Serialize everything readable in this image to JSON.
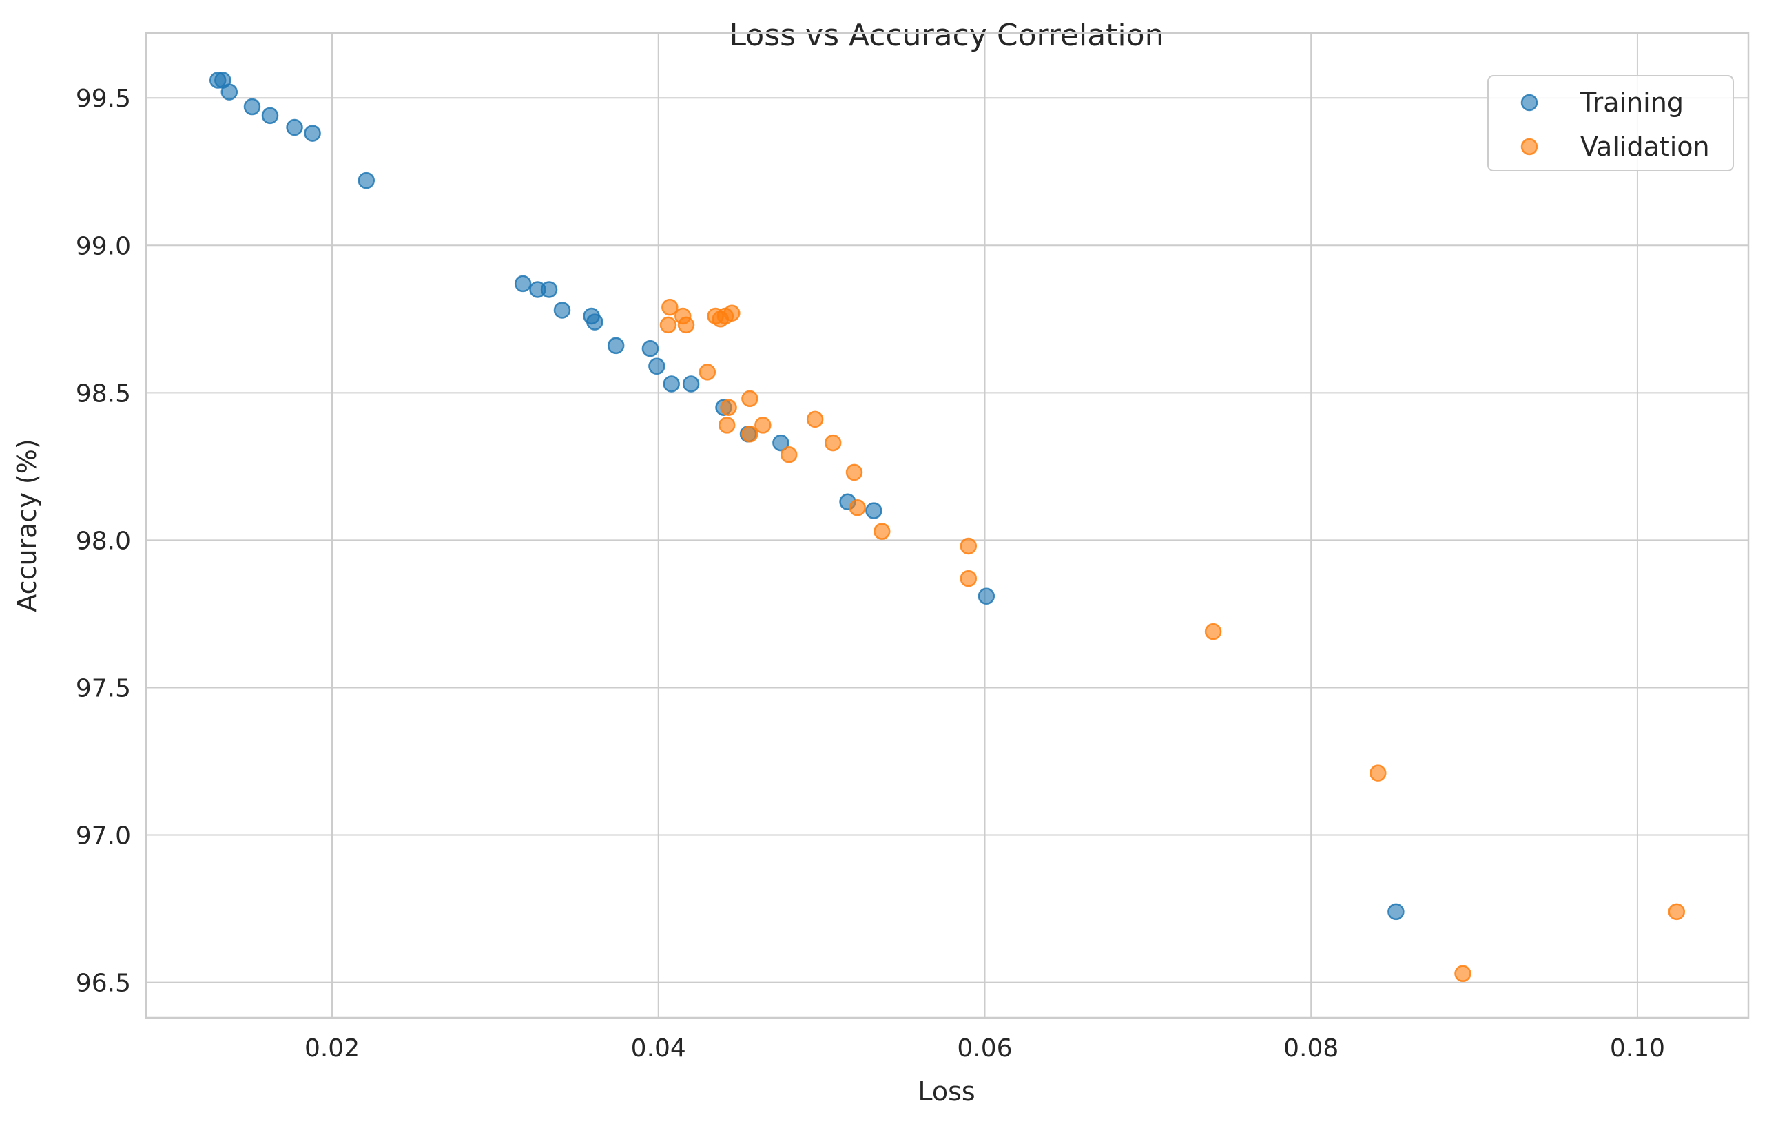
{
  "chart_data": {
    "type": "scatter",
    "title": "Loss vs Accuracy Correlation",
    "xlabel": "Loss",
    "ylabel": "Accuracy (%)",
    "xlim": [
      0.0086,
      0.1068
    ],
    "ylim": [
      96.38,
      99.72
    ],
    "xticks": [
      0.02,
      0.04,
      0.06,
      0.08,
      0.1
    ],
    "xtick_labels": [
      "0.02",
      "0.04",
      "0.06",
      "0.08",
      "0.10"
    ],
    "yticks": [
      96.5,
      97.0,
      97.5,
      98.0,
      98.5,
      99.0,
      99.5
    ],
    "ytick_labels": [
      "96.5",
      "97.0",
      "97.5",
      "98.0",
      "98.5",
      "99.0",
      "99.5"
    ],
    "grid": true,
    "legend_position": "top-right",
    "series": [
      {
        "name": "Training",
        "color": "#1f77b4",
        "points": [
          [
            0.013,
            99.56
          ],
          [
            0.0133,
            99.56
          ],
          [
            0.0137,
            99.52
          ],
          [
            0.0151,
            99.47
          ],
          [
            0.0162,
            99.44
          ],
          [
            0.0177,
            99.4
          ],
          [
            0.0188,
            99.38
          ],
          [
            0.0221,
            99.22
          ],
          [
            0.0317,
            98.87
          ],
          [
            0.0326,
            98.85
          ],
          [
            0.0333,
            98.85
          ],
          [
            0.0341,
            98.78
          ],
          [
            0.0359,
            98.76
          ],
          [
            0.0361,
            98.74
          ],
          [
            0.0374,
            98.66
          ],
          [
            0.0395,
            98.65
          ],
          [
            0.0399,
            98.59
          ],
          [
            0.0408,
            98.53
          ],
          [
            0.042,
            98.53
          ],
          [
            0.044,
            98.45
          ],
          [
            0.0455,
            98.36
          ],
          [
            0.0475,
            98.33
          ],
          [
            0.0516,
            98.13
          ],
          [
            0.0532,
            98.1
          ],
          [
            0.0601,
            97.81
          ],
          [
            0.0852,
            96.74
          ]
        ]
      },
      {
        "name": "Validation",
        "color": "#ff7f0e",
        "points": [
          [
            0.0407,
            98.79
          ],
          [
            0.0406,
            98.73
          ],
          [
            0.0415,
            98.76
          ],
          [
            0.0417,
            98.73
          ],
          [
            0.0435,
            98.76
          ],
          [
            0.0438,
            98.75
          ],
          [
            0.0441,
            98.76
          ],
          [
            0.0445,
            98.77
          ],
          [
            0.043,
            98.57
          ],
          [
            0.0456,
            98.48
          ],
          [
            0.0443,
            98.45
          ],
          [
            0.0442,
            98.39
          ],
          [
            0.0456,
            98.36
          ],
          [
            0.0464,
            98.39
          ],
          [
            0.048,
            98.29
          ],
          [
            0.0496,
            98.41
          ],
          [
            0.0507,
            98.33
          ],
          [
            0.052,
            98.23
          ],
          [
            0.0522,
            98.11
          ],
          [
            0.0537,
            98.03
          ],
          [
            0.059,
            97.98
          ],
          [
            0.059,
            97.87
          ],
          [
            0.074,
            97.69
          ],
          [
            0.0841,
            97.21
          ],
          [
            0.0893,
            96.53
          ],
          [
            0.1024,
            96.74
          ]
        ]
      }
    ]
  }
}
